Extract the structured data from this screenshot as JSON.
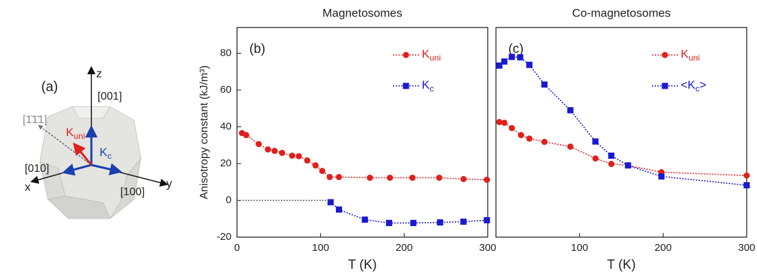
{
  "chart_data": [
    {
      "type": "line",
      "title": "Magnetosomes",
      "panel_label": "(b)",
      "xlabel": "T (K)",
      "ylabel": "Anisotropy constant (kJ/m³)",
      "xlim": [
        0,
        300
      ],
      "xticks": [
        0,
        100,
        200,
        300
      ],
      "ylim": [
        -20,
        94
      ],
      "yticks": [
        -20,
        0,
        20,
        40,
        60,
        80
      ],
      "series": [
        {
          "name": "Kuni",
          "color": "#e0201b",
          "marker": "circle",
          "linestyle": "dotted",
          "x": [
            6,
            11,
            26,
            37,
            45,
            54,
            66,
            74,
            84,
            94,
            102,
            111,
            122,
            159,
            183,
            210,
            242,
            271,
            299
          ],
          "values": [
            36.6,
            35.5,
            30.6,
            27.7,
            26.9,
            25.8,
            24.3,
            24,
            21.7,
            19,
            16,
            12.7,
            12.7,
            12.3,
            12.3,
            12.3,
            12.3,
            11.6,
            11.2
          ]
        },
        {
          "name": "Kc",
          "color": "#1a1ad0",
          "marker": "square",
          "linestyle": "dotted",
          "x": [
            112,
            122,
            153,
            182,
            211,
            243,
            271,
            299
          ],
          "values": [
            -1,
            -5,
            -10.5,
            -12.3,
            -12.3,
            -12,
            -11.6,
            -10.8
          ]
        },
        {
          "color": "#555555",
          "marker": "none",
          "linestyle": "dotted",
          "x": [
            0,
            110
          ],
          "values": [
            0,
            0
          ]
        }
      ]
    },
    {
      "type": "line",
      "title": "Co-magnetosomes",
      "panel_label": "(c)",
      "xlabel": "T (K)",
      "xlim": [
        0,
        300
      ],
      "xticks": [
        100,
        200,
        300
      ],
      "ylim": [
        -20,
        94
      ],
      "series": [
        {
          "name": "Kuni",
          "color": "#e0201b",
          "marker": "circle",
          "linestyle": "dotted",
          "x": [
            4,
            10,
            19,
            30,
            40,
            58,
            89,
            119,
            138,
            158,
            198,
            300
          ],
          "values": [
            42.6,
            42.2,
            39.3,
            35.5,
            33.6,
            31.8,
            29.2,
            22.8,
            19.8,
            19,
            15.3,
            13.5
          ]
        },
        {
          "name": "<Kc>",
          "color": "#1a1ad0",
          "marker": "square",
          "linestyle": "dotted",
          "x": [
            4,
            10,
            19,
            29,
            40,
            58,
            89,
            119,
            138,
            158,
            198,
            300
          ],
          "values": [
            73.3,
            75.5,
            78,
            77.8,
            73.7,
            63,
            49,
            32,
            24.3,
            19,
            13,
            8.2
          ]
        }
      ]
    }
  ],
  "diagram": {
    "panel_label": "(a)",
    "z": "z",
    "dir_001": "[001]",
    "dir_111": "[1̄1̄1]",
    "kuni": "Kuni",
    "kc": "Kc",
    "dir_010": "[010]",
    "x": "x",
    "dir_100": "[100]",
    "y": "y"
  }
}
